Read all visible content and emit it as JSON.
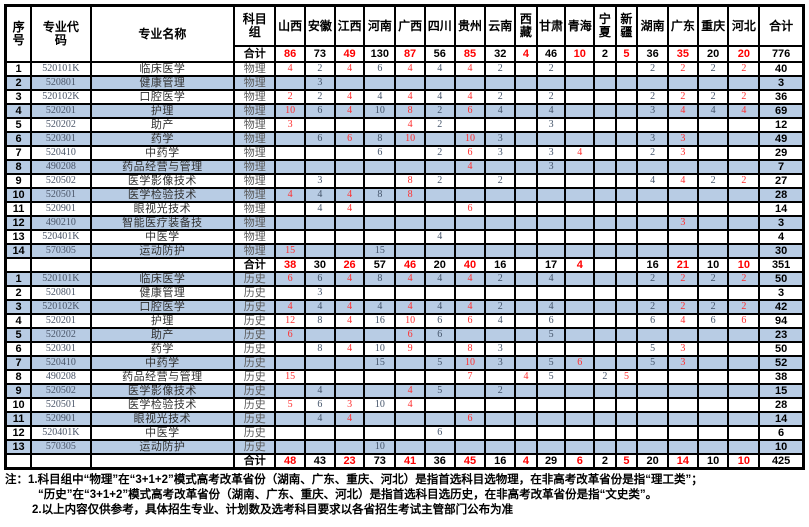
{
  "header": {
    "col_seq": "序\n号",
    "col_code": "专业代\n码",
    "col_major": "专业名称",
    "col_subject": "科目\n组",
    "col_total": "合计",
    "subtotal_label": "合计",
    "provinces": [
      {
        "name": "山西",
        "red": true
      },
      {
        "name": "安徽",
        "red": false
      },
      {
        "name": "江西",
        "red": true
      },
      {
        "name": "河南",
        "red": false
      },
      {
        "name": "广西",
        "red": true
      },
      {
        "name": "四川",
        "red": false
      },
      {
        "name": "贵州",
        "red": true
      },
      {
        "name": "云南",
        "red": false
      },
      {
        "name": "西\n藏",
        "red": true
      },
      {
        "name": "甘肃",
        "red": false
      },
      {
        "name": "青海",
        "red": true
      },
      {
        "name": "宁\n夏",
        "red": false
      },
      {
        "name": "新\n疆",
        "red": true
      },
      {
        "name": "湖南",
        "red": false
      },
      {
        "name": "广东",
        "red": true
      },
      {
        "name": "重庆",
        "red": false
      },
      {
        "name": "河北",
        "red": true
      }
    ],
    "grand": {
      "values": [
        86,
        73,
        49,
        130,
        87,
        56,
        85,
        32,
        4,
        46,
        10,
        2,
        5,
        36,
        35,
        20,
        20
      ],
      "total": 776
    }
  },
  "sections": [
    {
      "subject": "物理",
      "rows": [
        {
          "no": 1,
          "code": "520101K",
          "major": "临床医学",
          "values": [
            4,
            2,
            4,
            6,
            4,
            4,
            4,
            2,
            "",
            2,
            "",
            "",
            "",
            2,
            2,
            2,
            2
          ],
          "total": 40
        },
        {
          "no": 2,
          "code": "520801",
          "major": "健康管理",
          "values": [
            "",
            3,
            "",
            "",
            "",
            "",
            "",
            "",
            "",
            "",
            "",
            "",
            "",
            "",
            "",
            "",
            ""
          ],
          "total": 3
        },
        {
          "no": 3,
          "code": "520102K",
          "major": "口腔医学",
          "values": [
            2,
            2,
            4,
            4,
            4,
            4,
            4,
            2,
            "",
            2,
            "",
            "",
            "",
            2,
            2,
            2,
            2
          ],
          "total": 36
        },
        {
          "no": 4,
          "code": "520201",
          "major": "护理",
          "values": [
            10,
            6,
            4,
            10,
            8,
            2,
            6,
            4,
            "",
            4,
            "",
            "",
            "",
            3,
            4,
            4,
            4
          ],
          "total": 69
        },
        {
          "no": 5,
          "code": "520202",
          "major": "助产",
          "values": [
            3,
            "",
            "",
            "",
            4,
            2,
            "",
            "",
            "",
            3,
            "",
            "",
            "",
            "",
            "",
            "",
            ""
          ],
          "total": 12
        },
        {
          "no": 6,
          "code": "520301",
          "major": "药学",
          "values": [
            "",
            6,
            6,
            8,
            10,
            "",
            10,
            3,
            "",
            "",
            "",
            "",
            "",
            3,
            3,
            "",
            ""
          ],
          "total": 49
        },
        {
          "no": 7,
          "code": "520410",
          "major": "中药学",
          "values": [
            "",
            "",
            "",
            6,
            "",
            2,
            6,
            3,
            "",
            3,
            4,
            "",
            "",
            2,
            3,
            "",
            ""
          ],
          "total": 29
        },
        {
          "no": 8,
          "code": "490208",
          "major": "药品经营与管理",
          "values": [
            "",
            "",
            "",
            "",
            "",
            "",
            4,
            "",
            "",
            3,
            "",
            "",
            "",
            "",
            "",
            "",
            ""
          ],
          "total": 7
        },
        {
          "no": 9,
          "code": "520502",
          "major": "医学影像技术",
          "values": [
            "",
            3,
            "",
            "",
            8,
            2,
            "",
            2,
            "",
            "",
            "",
            "",
            "",
            4,
            4,
            2,
            2
          ],
          "total": 27
        },
        {
          "no": 10,
          "code": "520501",
          "major": "医学检验技术",
          "values": [
            4,
            4,
            4,
            8,
            8,
            "",
            "",
            "",
            "",
            "",
            "",
            "",
            "",
            "",
            "",
            "",
            ""
          ],
          "total": 28
        },
        {
          "no": 11,
          "code": "520901",
          "major": "眼视光技术",
          "values": [
            "",
            4,
            4,
            "",
            "",
            "",
            6,
            "",
            "",
            "",
            "",
            "",
            "",
            "",
            "",
            "",
            ""
          ],
          "total": 14
        },
        {
          "no": 12,
          "code": "490210",
          "major": "智能医疗装备技",
          "values": [
            "",
            "",
            "",
            "",
            "",
            "",
            "",
            "",
            "",
            "",
            "",
            "",
            "",
            "",
            3,
            "",
            ""
          ],
          "total": 3
        },
        {
          "no": 13,
          "code": "520401K",
          "major": "中医学",
          "values": [
            "",
            "",
            "",
            "",
            "",
            4,
            "",
            "",
            "",
            "",
            "",
            "",
            "",
            "",
            "",
            "",
            ""
          ],
          "total": 4
        },
        {
          "no": 14,
          "code": "570305",
          "major": "运动防护",
          "values": [
            15,
            "",
            "",
            15,
            "",
            "",
            "",
            "",
            "",
            "",
            "",
            "",
            "",
            "",
            "",
            "",
            ""
          ],
          "total": 30
        }
      ],
      "subtotal": {
        "values": [
          38,
          30,
          26,
          57,
          46,
          20,
          40,
          16,
          "",
          17,
          4,
          "",
          "",
          16,
          21,
          10,
          10
        ],
        "total": 351
      }
    },
    {
      "subject": "历史",
      "rows": [
        {
          "no": 1,
          "code": "520101K",
          "major": "临床医学",
          "values": [
            6,
            6,
            4,
            8,
            4,
            4,
            4,
            2,
            "",
            4,
            "",
            "",
            "",
            2,
            2,
            2,
            2
          ],
          "total": 50
        },
        {
          "no": 2,
          "code": "520801",
          "major": "健康管理",
          "values": [
            "",
            3,
            "",
            "",
            "",
            "",
            "",
            "",
            "",
            "",
            "",
            "",
            "",
            "",
            "",
            "",
            ""
          ],
          "total": 3
        },
        {
          "no": 3,
          "code": "520102K",
          "major": "口腔医学",
          "values": [
            4,
            4,
            4,
            4,
            4,
            4,
            4,
            2,
            "",
            4,
            "",
            "",
            "",
            2,
            2,
            2,
            2
          ],
          "total": 42
        },
        {
          "no": 4,
          "code": "520201",
          "major": "护理",
          "values": [
            12,
            8,
            4,
            16,
            10,
            6,
            6,
            4,
            "",
            6,
            "",
            "",
            "",
            6,
            4,
            6,
            6
          ],
          "total": 94
        },
        {
          "no": 5,
          "code": "520202",
          "major": "助产",
          "values": [
            6,
            "",
            "",
            "",
            6,
            6,
            "",
            "",
            "",
            5,
            "",
            "",
            "",
            "",
            "",
            "",
            ""
          ],
          "total": 23
        },
        {
          "no": 6,
          "code": "520301",
          "major": "药学",
          "values": [
            "",
            8,
            4,
            10,
            9,
            "",
            8,
            3,
            "",
            "",
            "",
            "",
            "",
            5,
            3,
            "",
            ""
          ],
          "total": 50
        },
        {
          "no": 7,
          "code": "520410",
          "major": "中药学",
          "values": [
            "",
            "",
            "",
            15,
            "",
            5,
            10,
            3,
            "",
            5,
            6,
            "",
            "",
            5,
            3,
            "",
            ""
          ],
          "total": 52
        },
        {
          "no": 8,
          "code": "490208",
          "major": "药品经营与管理",
          "values": [
            15,
            "",
            "",
            "",
            "",
            "",
            7,
            "",
            4,
            5,
            "",
            2,
            5,
            "",
            "",
            "",
            ""
          ],
          "total": 38
        },
        {
          "no": 9,
          "code": "520502",
          "major": "医学影像技术",
          "values": [
            "",
            4,
            "",
            "",
            4,
            5,
            "",
            2,
            "",
            "",
            "",
            "",
            "",
            "",
            "",
            "",
            ""
          ],
          "total": 15
        },
        {
          "no": 10,
          "code": "520501",
          "major": "医学检验技术",
          "values": [
            5,
            6,
            3,
            10,
            4,
            "",
            "",
            "",
            "",
            "",
            "",
            "",
            "",
            "",
            "",
            "",
            ""
          ],
          "total": 28
        },
        {
          "no": 11,
          "code": "520901",
          "major": "眼视光技术",
          "values": [
            "",
            4,
            4,
            "",
            "",
            "",
            6,
            "",
            "",
            "",
            "",
            "",
            "",
            "",
            "",
            "",
            ""
          ],
          "total": 14
        },
        {
          "no": 12,
          "code": "520401K",
          "major": "中医学",
          "values": [
            "",
            "",
            "",
            "",
            "",
            6,
            "",
            "",
            "",
            "",
            "",
            "",
            "",
            "",
            "",
            "",
            ""
          ],
          "total": 6
        },
        {
          "no": 13,
          "code": "570305",
          "major": "运动防护",
          "values": [
            "",
            "",
            "",
            10,
            "",
            "",
            "",
            "",
            "",
            "",
            "",
            "",
            "",
            "",
            "",
            "",
            ""
          ],
          "total": 10
        }
      ],
      "subtotal": {
        "values": [
          48,
          43,
          23,
          73,
          41,
          36,
          45,
          16,
          4,
          29,
          6,
          2,
          5,
          20,
          14,
          10,
          10
        ],
        "total": 425
      }
    }
  ],
  "notes": [
    "注：1.科目组中“物理”在“3+1+2”模式高考改革省份（湖南、广东、重庆、河北）是指首选科目选物理，在非高考改革省份是指“理工类”；",
    "“历史”在“3+1+2”模式高考改革省份（湖南、广东、重庆、河北）是指首选科目选历史，在非高考改革省份是指“文史类”。",
    "2.以上内容仅供参考，具体招生专业、计划数及选考科目要求以各省招生考试主管部门公布为准"
  ],
  "colors": {
    "band_blue": "#b8cce4",
    "red_text": "#ff0000",
    "muted_value": "#44546a",
    "border_black": "#000000"
  }
}
